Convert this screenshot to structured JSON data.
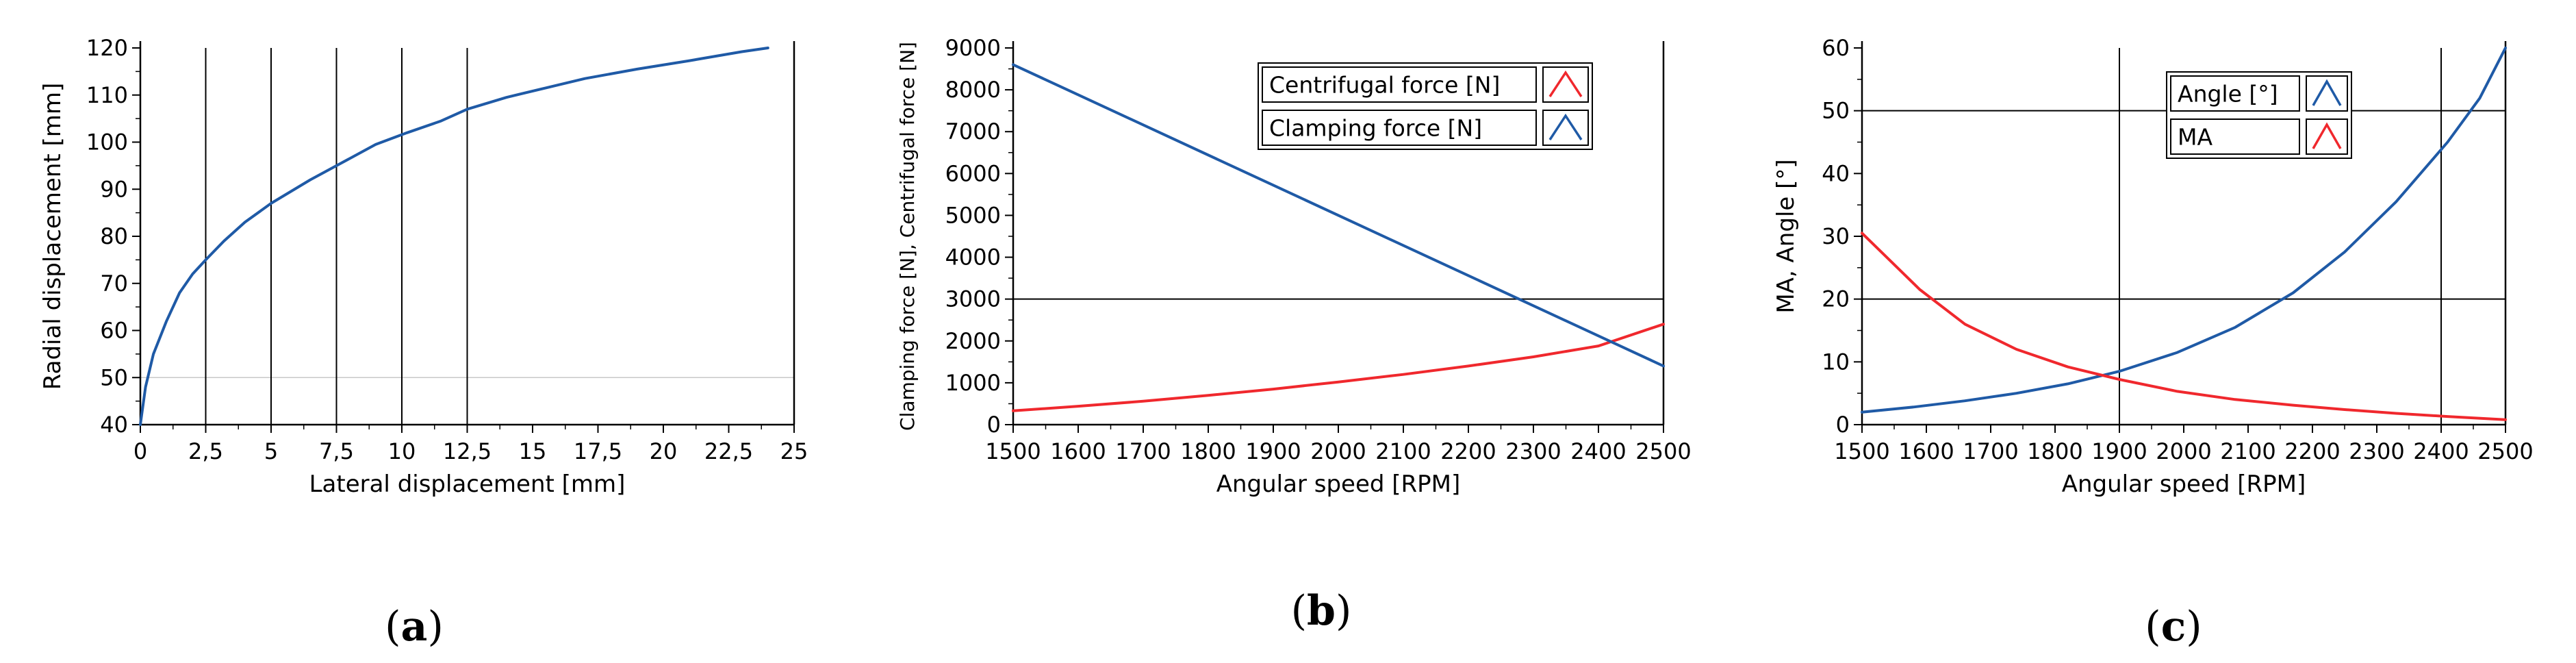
{
  "colors": {
    "blue": "#1f5aa6",
    "red": "#f0282d",
    "grid": "#000000",
    "faint_grid": "#c8c8c8"
  },
  "chart_data": [
    {
      "id": "a",
      "type": "line",
      "caption": "a",
      "title": "",
      "xlabel": "Lateral displacement [mm]",
      "ylabel": "Radial displacement [mm]",
      "xlim": [
        0,
        25
      ],
      "ylim": [
        40,
        120
      ],
      "x_ticks": [
        0,
        2.5,
        5,
        7.5,
        10,
        12.5,
        15,
        17.5,
        20,
        22.5,
        25
      ],
      "x_tick_labels": [
        "0",
        "2,5",
        "5",
        "7,5",
        "10",
        "12,5",
        "15",
        "17,5",
        "20",
        "22,5",
        "25"
      ],
      "y_ticks": [
        40,
        50,
        60,
        70,
        80,
        90,
        100,
        110,
        120
      ],
      "y_tick_labels": [
        "40",
        "50",
        "60",
        "70",
        "80",
        "90",
        "100",
        "110",
        "120"
      ],
      "vlines": [
        2.5,
        5,
        7.5,
        10,
        12.5
      ],
      "hlines": [],
      "faint_hlines": [
        50
      ],
      "series": [
        {
          "name": "Radial displacement",
          "color": "#1f5aa6",
          "x": [
            0,
            0.2,
            0.5,
            1,
            1.5,
            2,
            2.5,
            3.2,
            4,
            5,
            6.5,
            7.5,
            9,
            10.2,
            11.5,
            12.5,
            14,
            15.5,
            17,
            19,
            21,
            23,
            24
          ],
          "y": [
            40,
            48,
            55,
            62,
            68,
            72,
            75,
            79,
            83,
            87,
            92,
            95,
            99.5,
            102,
            104.5,
            107,
            109.5,
            111.5,
            113.5,
            115.5,
            117.3,
            119.2,
            120
          ]
        }
      ]
    },
    {
      "id": "b",
      "type": "line",
      "caption": "b",
      "title": "",
      "xlabel": "Angular speed [RPM]",
      "ylabel": "Clamping force [N], Centrifugal force [N]",
      "xlim": [
        1500,
        2500
      ],
      "ylim": [
        0,
        9000
      ],
      "x_ticks": [
        1500,
        1600,
        1700,
        1800,
        1900,
        2000,
        2100,
        2200,
        2300,
        2400,
        2500
      ],
      "x_tick_labels": [
        "1500",
        "1600",
        "1700",
        "1800",
        "1900",
        "2000",
        "2100",
        "2200",
        "2300",
        "2400",
        "2500"
      ],
      "y_ticks": [
        0,
        1000,
        2000,
        3000,
        4000,
        5000,
        6000,
        7000,
        8000,
        9000
      ],
      "y_tick_labels": [
        "0",
        "1000",
        "2000",
        "3000",
        "4000",
        "5000",
        "6000",
        "7000",
        "8000",
        "9000"
      ],
      "vlines": [],
      "hlines": [
        3000
      ],
      "legend": [
        {
          "label": "Centrifugal force [N]",
          "color": "#f0282d"
        },
        {
          "label": "Clamping force [N]",
          "color": "#1f5aa6"
        }
      ],
      "series": [
        {
          "name": "Centrifugal force [N]",
          "color": "#f0282d",
          "x": [
            1500,
            1600,
            1700,
            1800,
            1900,
            2000,
            2100,
            2200,
            2300,
            2400,
            2500
          ],
          "y": [
            330,
            440,
            560,
            700,
            850,
            1020,
            1200,
            1400,
            1620,
            1880,
            2400
          ]
        },
        {
          "name": "Clamping force [N]",
          "color": "#1f5aa6",
          "x": [
            1500,
            2500
          ],
          "y": [
            8600,
            1400
          ]
        }
      ]
    },
    {
      "id": "c",
      "type": "line",
      "caption": "c",
      "title": "",
      "xlabel": "Angular speed [RPM]",
      "ylabel": "MA, Angle [°]",
      "xlim": [
        1500,
        2500
      ],
      "ylim": [
        0,
        60
      ],
      "x_ticks": [
        1500,
        1600,
        1700,
        1800,
        1900,
        2000,
        2100,
        2200,
        2300,
        2400,
        2500
      ],
      "x_tick_labels": [
        "1500",
        "1600",
        "1700",
        "1800",
        "1900",
        "2000",
        "2100",
        "2200",
        "2300",
        "2400",
        "2500"
      ],
      "y_ticks": [
        0,
        10,
        20,
        30,
        40,
        50,
        60
      ],
      "y_tick_labels": [
        "0",
        "10",
        "20",
        "30",
        "40",
        "50",
        "60"
      ],
      "vlines": [
        1900,
        2400
      ],
      "hlines": [
        20,
        50
      ],
      "legend": [
        {
          "label": "Angle [°]",
          "color": "#1f5aa6"
        },
        {
          "label": "MA",
          "color": "#f0282d"
        }
      ],
      "series": [
        {
          "name": "Angle [°]",
          "color": "#1f5aa6",
          "x": [
            1500,
            1580,
            1660,
            1740,
            1820,
            1900,
            1990,
            2080,
            2170,
            2250,
            2330,
            2410,
            2460,
            2500
          ],
          "y": [
            2,
            2.8,
            3.8,
            5,
            6.5,
            8.5,
            11.5,
            15.5,
            21,
            27.5,
            35.5,
            45,
            52,
            60
          ]
        },
        {
          "name": "MA",
          "color": "#f0282d",
          "x": [
            1500,
            1590,
            1660,
            1740,
            1820,
            1900,
            1990,
            2080,
            2170,
            2250,
            2330,
            2410,
            2500
          ],
          "y": [
            30.5,
            21.5,
            16,
            12,
            9.2,
            7.2,
            5.3,
            4,
            3.1,
            2.4,
            1.8,
            1.3,
            0.8
          ]
        }
      ]
    }
  ]
}
